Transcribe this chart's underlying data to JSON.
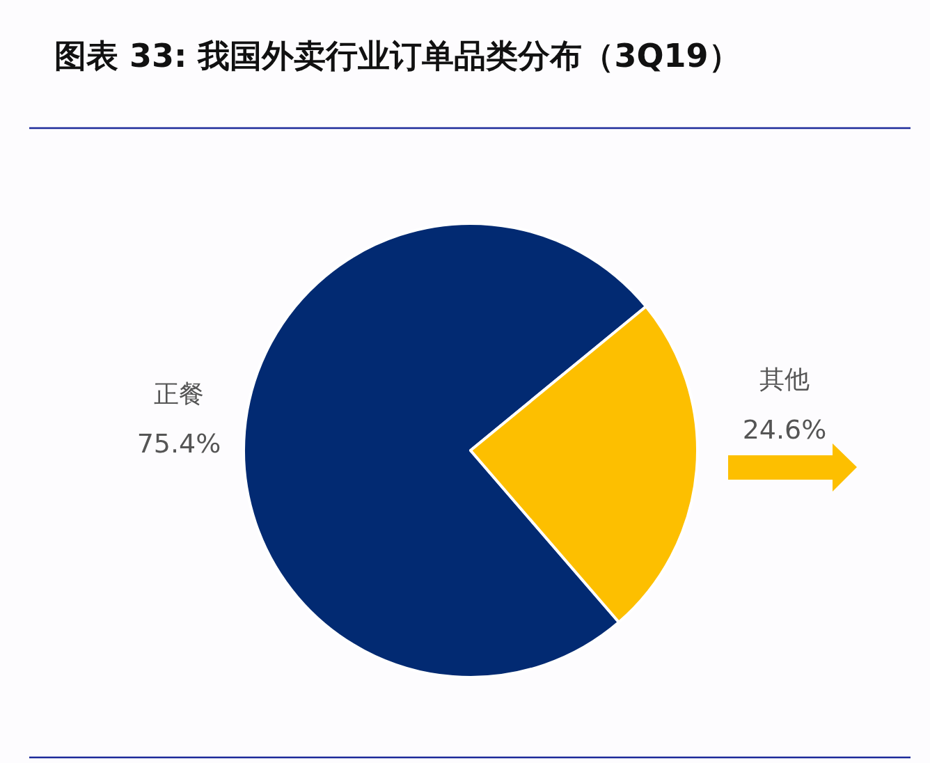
{
  "chart_data": {
    "type": "pie",
    "title": "图表 33: 我国外卖行业订单品类分布（3Q19）",
    "categories": [
      "正餐",
      "其他"
    ],
    "values": [
      75.4,
      24.6
    ],
    "colors": [
      "#022a72",
      "#fdbf00"
    ],
    "value_labels": [
      "75.4%",
      "24.6%"
    ]
  }
}
